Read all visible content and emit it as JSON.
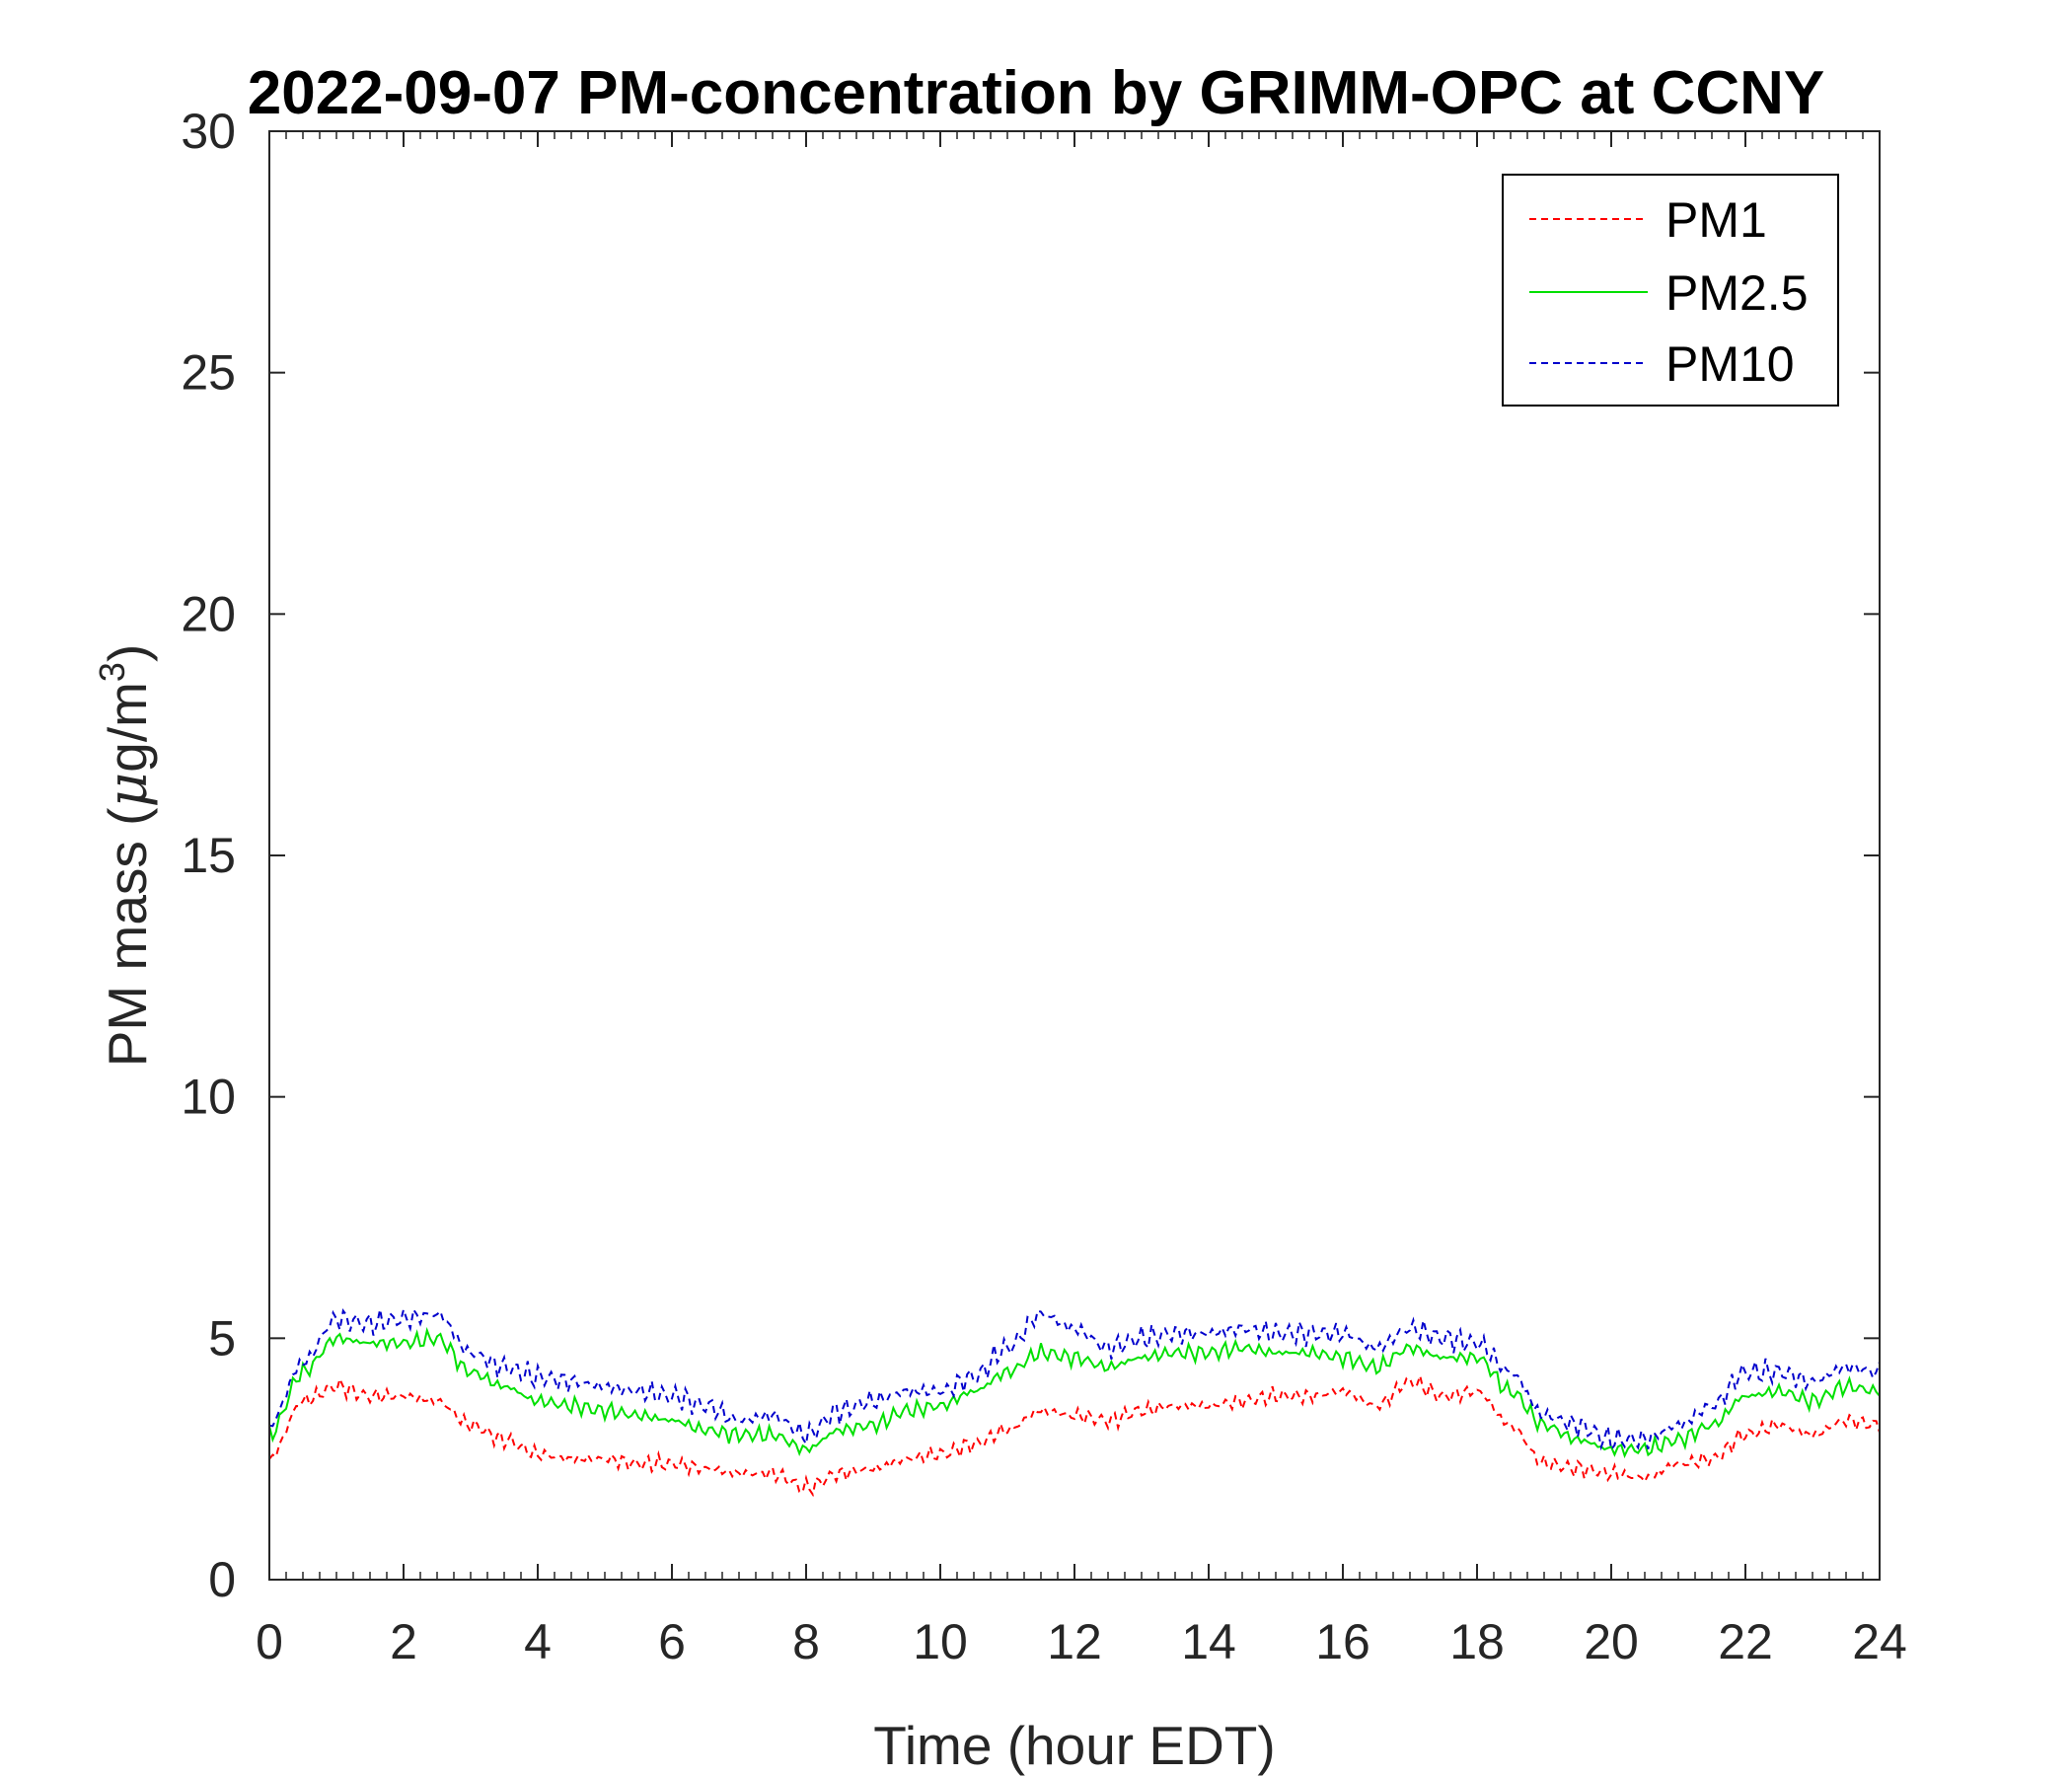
{
  "chart_data": {
    "type": "line",
    "title": "2022-09-07 PM-concentration by GRIMM-OPC at CCNY",
    "xlabel": "Time (hour EDT)",
    "ylabel_prefix": "PM mass (",
    "ylabel_mu": "μ",
    "ylabel_unit": "g/m",
    "ylabel_sup": "3",
    "ylabel_suffix": ")",
    "xlim": [
      0,
      24
    ],
    "ylim": [
      0,
      30
    ],
    "xticks": [
      "0",
      "2",
      "4",
      "6",
      "8",
      "10",
      "12",
      "14",
      "16",
      "18",
      "20",
      "22",
      "24"
    ],
    "yticks": [
      "0",
      "5",
      "10",
      "15",
      "20",
      "25",
      "30"
    ],
    "grid": false,
    "legend_position": "top-right",
    "x": [
      0,
      0.5,
      1,
      1.5,
      2,
      2.5,
      3,
      3.5,
      4,
      4.5,
      5,
      5.5,
      6,
      6.5,
      7,
      7.5,
      8,
      8.5,
      9,
      9.5,
      10,
      10.5,
      11,
      11.5,
      12,
      12.5,
      13,
      13.5,
      14,
      14.5,
      15,
      15.5,
      16,
      16.5,
      17,
      17.5,
      18,
      18.5,
      19,
      19.5,
      20,
      20.5,
      21,
      21.5,
      22,
      22.5,
      23,
      23.5,
      24
    ],
    "series": [
      {
        "name": "PM1",
        "color": "#ff0000",
        "dash": "dashed",
        "values": [
          2.5,
          3.7,
          4.0,
          3.8,
          3.8,
          3.7,
          3.2,
          2.9,
          2.6,
          2.5,
          2.5,
          2.4,
          2.4,
          2.3,
          2.2,
          2.2,
          1.9,
          2.2,
          2.3,
          2.5,
          2.6,
          2.8,
          3.1,
          3.5,
          3.4,
          3.3,
          3.5,
          3.6,
          3.6,
          3.7,
          3.8,
          3.8,
          3.9,
          3.6,
          4.1,
          3.8,
          3.9,
          3.2,
          2.4,
          2.3,
          2.2,
          2.1,
          2.4,
          2.5,
          3.0,
          3.2,
          3.0,
          3.3,
          3.2
        ]
      },
      {
        "name": "PM2.5",
        "color": "#00e000",
        "dash": "solid",
        "values": [
          3.0,
          4.3,
          5.0,
          4.9,
          4.9,
          5.0,
          4.3,
          4.0,
          3.7,
          3.6,
          3.5,
          3.4,
          3.3,
          3.1,
          3.0,
          3.0,
          2.7,
          3.1,
          3.2,
          3.5,
          3.6,
          3.9,
          4.3,
          4.7,
          4.6,
          4.4,
          4.6,
          4.7,
          4.7,
          4.8,
          4.7,
          4.7,
          4.6,
          4.4,
          4.8,
          4.6,
          4.6,
          3.9,
          3.2,
          2.9,
          2.7,
          2.7,
          2.9,
          3.2,
          3.8,
          3.9,
          3.7,
          4.0,
          3.9
        ]
      },
      {
        "name": "PM10",
        "color": "#0000cc",
        "dash": "dashed",
        "values": [
          3.2,
          4.5,
          5.4,
          5.3,
          5.4,
          5.5,
          4.7,
          4.4,
          4.2,
          4.1,
          4.0,
          3.9,
          3.8,
          3.6,
          3.3,
          3.4,
          3.0,
          3.5,
          3.7,
          3.9,
          3.9,
          4.2,
          4.8,
          5.5,
          5.2,
          4.8,
          5.0,
          5.1,
          5.1,
          5.2,
          5.1,
          5.1,
          5.1,
          4.8,
          5.2,
          5.0,
          4.9,
          4.3,
          3.4,
          3.2,
          2.9,
          2.9,
          3.2,
          3.6,
          4.3,
          4.3,
          4.1,
          4.4,
          4.3
        ]
      }
    ]
  }
}
